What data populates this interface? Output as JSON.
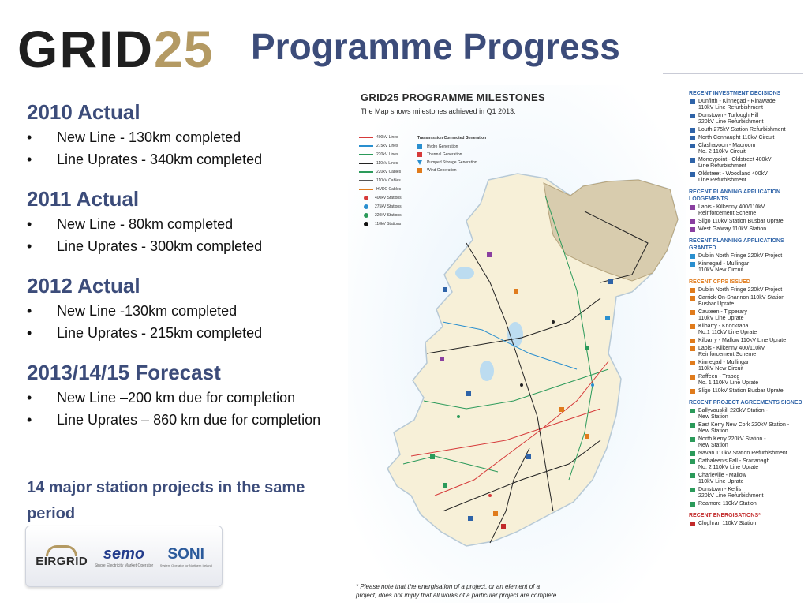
{
  "header": {
    "logo_text": "GRID",
    "logo_number": "25",
    "title": "Programme Progress"
  },
  "sections": [
    {
      "heading": "2010 Actual",
      "bullets": [
        "New Line - 130km completed",
        "Line Uprates - 340km completed"
      ]
    },
    {
      "heading": "2011 Actual",
      "bullets": [
        "New Line - 80km completed",
        "Line Uprates - 300km completed"
      ]
    },
    {
      "heading": "2012 Actual",
      "bullets": [
        "New Line -130km completed",
        "Line Uprates - 215km completed"
      ]
    },
    {
      "heading": "2013/14/15 Forecast",
      "bullets": [
        "New Line –200 km due for completion",
        "Line Uprates – 860 km due for completion"
      ]
    }
  ],
  "bullet_char": "•",
  "note": "14 major station projects in the same period",
  "partners": {
    "eirgrid": "EIRGRID",
    "semo": "semo",
    "semo_sub": "Single Electricity Market Operator",
    "soni": "SONI",
    "soni_sub": "System Operator for Northern Ireland"
  },
  "map": {
    "title": "GRID25 PROGRAMME MILESTONES",
    "subtitle": "The Map shows milestones achieved in Q1 2013:",
    "legend_lines": [
      {
        "label": "400kV Lines",
        "color": "#d63a3a"
      },
      {
        "label": "275kV Lines",
        "color": "#2a8fcf"
      },
      {
        "label": "220kV Lines",
        "color": "#2b9a5a"
      },
      {
        "label": "110kV Lines",
        "color": "#222222"
      },
      {
        "label": "220kV Cables",
        "color": "#2b9a5a"
      },
      {
        "label": "110kV Cables",
        "color": "#555555"
      },
      {
        "label": "HVDC Cables",
        "color": "#e07b1c"
      }
    ],
    "legend_stations": [
      {
        "label": "400kV Stations",
        "color": "#d63a3a"
      },
      {
        "label": "275kV Stations",
        "color": "#2a8fcf"
      },
      {
        "label": "220kV Stations",
        "color": "#2b9a5a"
      },
      {
        "label": "110kV Stations",
        "color": "#111111"
      }
    ],
    "legend_gen_head": "Transmission Connected Generation",
    "legend_gen": [
      {
        "label": "Hydro Generation",
        "color": "#2a8fcf"
      },
      {
        "label": "Thermal Generation",
        "color": "#d63a3a"
      },
      {
        "label": "Pumped Storage Generation",
        "color": "#2a8fcf"
      },
      {
        "label": "Wind Generation",
        "color": "#e07b1c"
      }
    ],
    "footnote": "* Please note that the energisation of a project, or an element of a project, does not imply that all works of a particular project are complete."
  },
  "milestones": [
    {
      "category": "RECENT INVESTMENT DECISIONS",
      "color": "#2e63a8",
      "items": [
        "Dunfirth - Kinnegad - Rinawade\n110kV Line Refurbishment",
        "Dunstown - Turlough Hill\n220kV Line Refurbishment",
        "Louth 275kV Station Refurbishment",
        "North Connaught 110kV Circuit",
        "Clashavoon - Macroom\nNo. 2 110kV Circuit",
        "Moneypoint - Oldstreet 400kV\nLine Refurbishment",
        "Oldstreet - Woodland 400kV\nLine Refurbishment"
      ]
    },
    {
      "category": "RECENT PLANNING APPLICATION LODGEMENTS",
      "color": "#8a3fa0",
      "items": [
        "Laois - Kilkenny 400/110kV\nReinforcement Scheme",
        "Sligo 110kV Station Busbar Uprate",
        "West Galway 110kV Station"
      ]
    },
    {
      "category": "RECENT PLANNING APPLICATIONS GRANTED",
      "color": "#2a8fcf",
      "items": [
        "Dublin North Fringe 220kV Project",
        "Kinnegad - Mullingar\n110kV New Circuit"
      ]
    },
    {
      "category": "RECENT CPPS ISSUED",
      "color": "#e07b1c",
      "items": [
        "Dublin North Fringe 220kV Project",
        "Carrick-On-Shannon 110kV Station\nBusbar Uprate",
        "Cauteen - Tipperary\n110kV Line Uprate",
        "Kilbarry - Knockraha\nNo.1 110kV Line Uprate",
        "Kilbarry - Mallow 110kV Line Uprate",
        "Laois - Kilkenny 400/110kV\nReinforcement Scheme",
        "Kinnegad - Mullingar\n110kV New Circuit",
        "Raffeen - Trabeg\nNo. 1 110kV Line Uprate",
        "Sligo 110kV Station Busbar Uprate"
      ]
    },
    {
      "category": "RECENT PROJECT AGREEMENTS SIGNED",
      "color": "#2b9a5a",
      "items": [
        "Ballyvouskill 220kV Station -\nNew Station",
        "East Kerry New Cork 220kV Station -\nNew Station",
        "North Kerry 220kV Station -\nNew Station",
        "Navan 110kV Station Refurbishment",
        "Cathaleen's Fall - Srananagh\nNo. 2 110kV Line Uprate",
        "Charleville - Mallow\n110kV Line Uprate",
        "Dunstown - Kellis\n220kV Line Refurbishment",
        "Reamore 110kV Station"
      ]
    },
    {
      "category": "RECENT ENERGISATIONS*",
      "color": "#c22a2a",
      "items": [
        "Cloghran 110kV Station"
      ]
    }
  ]
}
